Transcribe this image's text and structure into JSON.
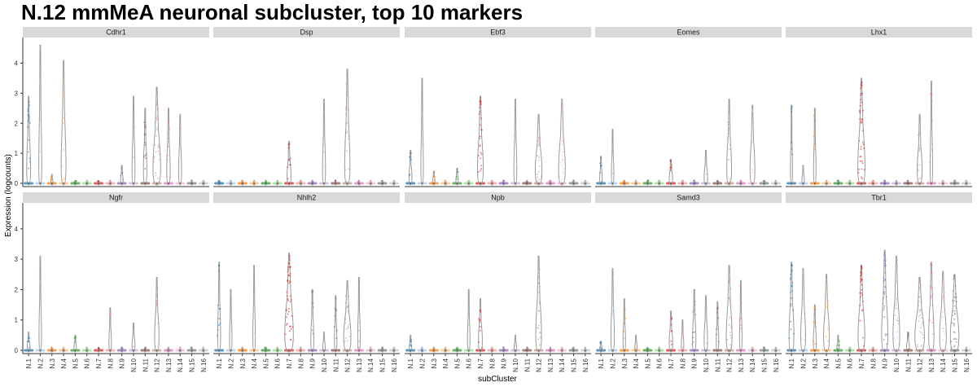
{
  "title": "N.12 mmMeA neuronal subcluster, top 10 markers",
  "chart_data": {
    "type": "violin",
    "title": "N.12 mmMeA neuronal subcluster, top 10 markers",
    "xlabel": "subCluster",
    "ylabel": "Expression (logcounts)",
    "ylim": [
      0,
      4.8
    ],
    "yticks": [
      0,
      1,
      2,
      3,
      4
    ],
    "grid": false,
    "categories": [
      "N.1",
      "N.2",
      "N.3",
      "N.4",
      "N.5",
      "N.6",
      "N.7",
      "N.8",
      "N.9",
      "N.10",
      "N.11",
      "N.12",
      "N.13",
      "N.14",
      "N.15",
      "N.16"
    ],
    "colors": [
      "#1f77b4",
      "#aec7e8",
      "#ff7f0e",
      "#ffbb78",
      "#2ca02c",
      "#98df8a",
      "#d62728",
      "#ff9896",
      "#9467bd",
      "#c5b0d5",
      "#8c564b",
      "#c49c94",
      "#e377c2",
      "#f7b6d2",
      "#7f7f7f",
      "#c7c7c7"
    ],
    "panels": [
      {
        "gene": "Cdhr1",
        "max": [
          2.9,
          4.6,
          0.3,
          4.1,
          0.1,
          0.1,
          0.1,
          0.1,
          0.6,
          2.9,
          2.5,
          3.2,
          2.5,
          2.3,
          0.1,
          0.1
        ],
        "width": [
          0.25,
          0.15,
          0.05,
          0.35,
          0.05,
          0.05,
          0.05,
          0.05,
          0.1,
          0.15,
          0.2,
          0.65,
          0.2,
          0.15,
          0.05,
          0.05
        ]
      },
      {
        "gene": "Dsp",
        "max": [
          0.1,
          0.1,
          0.1,
          0.1,
          0.1,
          0.1,
          1.4,
          0.1,
          0.1,
          2.8,
          0.1,
          3.8,
          0.1,
          0.1,
          0.1,
          0.1
        ],
        "width": [
          0.05,
          0.05,
          0.05,
          0.05,
          0.05,
          0.05,
          0.25,
          0.05,
          0.05,
          0.15,
          0.05,
          0.4,
          0.05,
          0.05,
          0.05,
          0.05
        ]
      },
      {
        "gene": "Ebf3",
        "max": [
          1.1,
          3.5,
          0.4,
          0.1,
          0.5,
          0.1,
          2.9,
          0.1,
          0.1,
          2.8,
          0.1,
          2.3,
          0.1,
          2.8,
          0.1,
          0.1
        ],
        "width": [
          0.15,
          0.1,
          0.1,
          0.05,
          0.1,
          0.05,
          0.45,
          0.05,
          0.05,
          0.15,
          0.05,
          0.55,
          0.05,
          0.55,
          0.05,
          0.05
        ]
      },
      {
        "gene": "Eomes",
        "max": [
          0.9,
          1.8,
          0.1,
          0.1,
          0.1,
          0.1,
          0.8,
          0.1,
          0.1,
          1.1,
          0.1,
          2.8,
          0.1,
          2.6,
          0.1,
          0.1
        ],
        "width": [
          0.1,
          0.1,
          0.05,
          0.05,
          0.05,
          0.05,
          0.2,
          0.05,
          0.05,
          0.2,
          0.05,
          0.35,
          0.05,
          0.35,
          0.05,
          0.05
        ]
      },
      {
        "gene": "Lhx1",
        "max": [
          2.6,
          0.6,
          2.5,
          0.1,
          0.1,
          0.1,
          3.5,
          0.1,
          0.1,
          0.1,
          0.1,
          2.3,
          3.4,
          0.1,
          0.1,
          0.1
        ],
        "width": [
          0.05,
          0.1,
          0.1,
          0.05,
          0.05,
          0.05,
          0.6,
          0.05,
          0.05,
          0.05,
          0.05,
          0.35,
          0.1,
          0.05,
          0.05,
          0.05
        ]
      },
      {
        "gene": "Ngfr",
        "max": [
          0.6,
          3.1,
          0.1,
          0.1,
          0.5,
          0.1,
          0.1,
          1.4,
          0.1,
          0.9,
          0.1,
          2.4,
          0.1,
          0.1,
          0.1,
          0.1
        ],
        "width": [
          0.15,
          0.1,
          0.05,
          0.05,
          0.1,
          0.05,
          0.05,
          0.1,
          0.05,
          0.15,
          0.05,
          0.3,
          0.1,
          0.05,
          0.05,
          0.05
        ]
      },
      {
        "gene": "Nhlh2",
        "max": [
          2.9,
          2.0,
          0.1,
          2.8,
          0.1,
          0.1,
          3.2,
          0.1,
          2.0,
          0.6,
          1.8,
          2.3,
          2.4,
          0.1,
          0.1,
          0.1
        ],
        "width": [
          0.15,
          0.1,
          0.05,
          0.1,
          0.05,
          0.05,
          0.75,
          0.05,
          0.15,
          0.1,
          0.1,
          0.6,
          0.1,
          0.05,
          0.05,
          0.05
        ]
      },
      {
        "gene": "Npb",
        "max": [
          0.5,
          0.1,
          0.1,
          0.1,
          0.1,
          2.0,
          1.7,
          0.1,
          0.1,
          0.5,
          0.1,
          3.1,
          0.1,
          0.1,
          0.1,
          0.1
        ],
        "width": [
          0.1,
          0.05,
          0.05,
          0.05,
          0.05,
          0.1,
          0.25,
          0.05,
          0.05,
          0.1,
          0.05,
          0.45,
          0.05,
          0.05,
          0.05,
          0.05
        ]
      },
      {
        "gene": "Samd3",
        "max": [
          0.3,
          2.7,
          1.7,
          0.5,
          0.1,
          0.1,
          1.3,
          1.0,
          2.0,
          1.8,
          1.6,
          2.8,
          2.3,
          0.1,
          0.1,
          0.1
        ],
        "width": [
          0.1,
          0.2,
          0.1,
          0.1,
          0.05,
          0.05,
          0.2,
          0.1,
          0.2,
          0.2,
          0.1,
          0.45,
          0.1,
          0.05,
          0.05,
          0.05
        ]
      },
      {
        "gene": "Tbr1",
        "max": [
          2.9,
          2.7,
          1.5,
          2.5,
          0.5,
          0.1,
          2.8,
          0.1,
          3.3,
          3.1,
          0.6,
          2.4,
          2.9,
          2.6,
          2.5,
          0.1
        ],
        "width": [
          0.35,
          0.35,
          0.15,
          0.45,
          0.1,
          0.05,
          0.55,
          0.05,
          0.5,
          0.55,
          0.15,
          0.85,
          0.4,
          0.55,
          0.75,
          0.05
        ]
      }
    ]
  }
}
